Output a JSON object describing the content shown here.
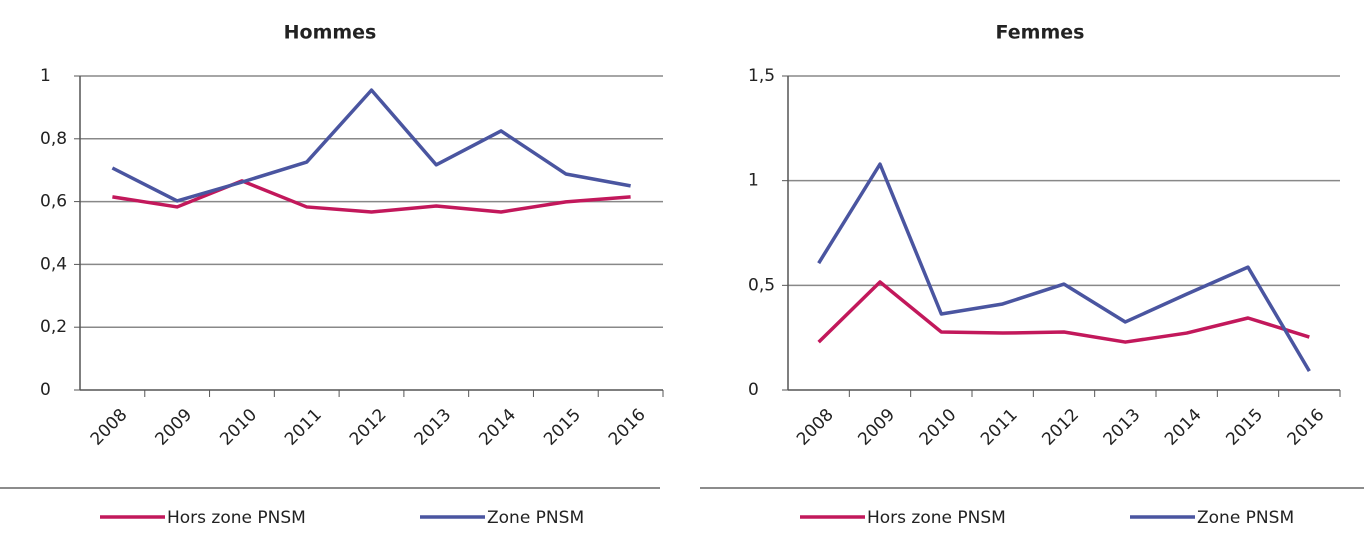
{
  "chart_data": [
    {
      "type": "line",
      "title": "Hommes",
      "categories": [
        "2008",
        "2009",
        "2010",
        "2011",
        "2012",
        "2013",
        "2014",
        "2015",
        "2016"
      ],
      "series": [
        {
          "name": "Hors zone PNSM",
          "color": "#c2185b",
          "values": [
            0.615,
            0.583,
            0.666,
            0.583,
            0.567,
            0.586,
            0.567,
            0.599,
            0.615
          ]
        },
        {
          "name": "Zone PNSM",
          "color": "#4a55a0",
          "values": [
            0.707,
            0.602,
            0.662,
            0.726,
            0.955,
            0.717,
            0.825,
            0.688,
            0.65
          ]
        }
      ],
      "ylim": [
        0,
        1
      ],
      "yticks": [
        0,
        {
          "value": 0.2,
          "label": "0,2"
        },
        {
          "value": 0.4,
          "label": "0,4"
        },
        {
          "value": 0.6,
          "label": "0,6"
        },
        {
          "value": 0.8,
          "label": "0,8"
        },
        1
      ],
      "grid": true,
      "legend": "bottom"
    },
    {
      "type": "line",
      "title": "Femmes",
      "categories": [
        "2008",
        "2009",
        "2010",
        "2011",
        "2012",
        "2013",
        "2014",
        "2015",
        "2016"
      ],
      "series": [
        {
          "name": "Hors zone PNSM",
          "color": "#c2185b",
          "values": [
            0.229,
            0.516,
            0.277,
            0.272,
            0.277,
            0.229,
            0.272,
            0.344,
            0.253
          ]
        },
        {
          "name": "Zone PNSM",
          "color": "#4a55a0",
          "values": [
            0.606,
            1.079,
            0.363,
            0.411,
            0.506,
            0.325,
            0.458,
            0.587,
            0.09
          ]
        }
      ],
      "ylim": [
        0,
        1.5
      ],
      "yticks": [
        0,
        {
          "value": 0.5,
          "label": "0,5"
        },
        1,
        {
          "value": 1.5,
          "label": "1,5"
        }
      ],
      "grid": true,
      "legend": "bottom"
    }
  ]
}
